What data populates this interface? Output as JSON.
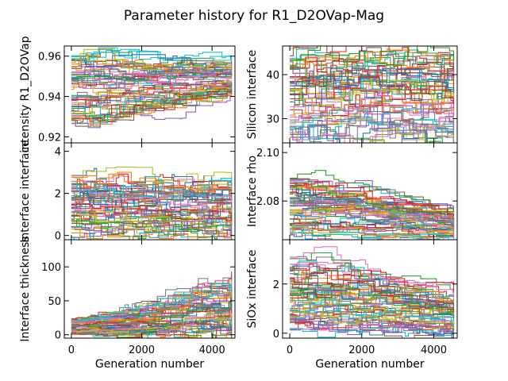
{
  "figure": {
    "title": "Parameter history for R1_D2OVap-Mag"
  },
  "chart_data": [
    {
      "type": "line",
      "ylabel": "intensity R1_D2OVap",
      "xlabel": "",
      "xlim": [
        -200,
        4650
      ],
      "ylim": [
        0.917,
        0.965
      ],
      "xticks": [
        0,
        2000,
        4000
      ],
      "yticks": [
        0.92,
        0.94,
        0.96
      ],
      "ytick_labels": [
        "0.92",
        "0.94",
        "0.96"
      ],
      "show_xtick_labels": false,
      "series_summary": {
        "center_start": 0.943,
        "center_end": 0.95,
        "spread_start": 0.018,
        "spread_end": 0.007
      },
      "grid": false
    },
    {
      "type": "line",
      "ylabel": "Silicon interface",
      "xlabel": "",
      "xlim": [
        -200,
        4650
      ],
      "ylim": [
        24.5,
        46.5
      ],
      "xticks": [
        0,
        2000,
        4000
      ],
      "yticks": [
        30,
        40
      ],
      "ytick_labels": [
        "30",
        "40"
      ],
      "show_xtick_labels": false,
      "series_summary": {
        "center_start": 35,
        "center_end": 35,
        "spread_start": 11,
        "spread_end": 10
      },
      "grid": false
    },
    {
      "type": "line",
      "ylabel": "Interface interface",
      "xlabel": "",
      "xlim": [
        -200,
        4650
      ],
      "ylim": [
        -0.2,
        4.4
      ],
      "xticks": [
        0,
        2000,
        4000
      ],
      "yticks": [
        0,
        2,
        4
      ],
      "ytick_labels": [
        "0",
        "2",
        "4"
      ],
      "show_xtick_labels": false,
      "series_summary": {
        "center_start": 1.3,
        "center_end": 1.1,
        "spread_start": 1.6,
        "spread_end": 1.5
      },
      "grid": false
    },
    {
      "type": "line",
      "ylabel": "Interface rho",
      "xlabel": "",
      "xlim": [
        -200,
        4650
      ],
      "ylim": [
        2.064,
        2.104
      ],
      "xticks": [
        0,
        2000,
        4000
      ],
      "yticks": [
        2.08,
        2.1
      ],
      "ytick_labels": [
        "2.08",
        "2.10"
      ],
      "show_xtick_labels": false,
      "series_summary": {
        "center_start": 2.078,
        "center_end": 2.068,
        "spread_start": 0.012,
        "spread_end": 0.004
      },
      "grid": false
    },
    {
      "type": "line",
      "ylabel": "Interface thickness",
      "xlabel": "Generation number",
      "xlim": [
        -200,
        4650
      ],
      "ylim": [
        -5,
        140
      ],
      "xticks": [
        0,
        2000,
        4000
      ],
      "xtick_labels": [
        "0",
        "2000",
        "4000"
      ],
      "yticks": [
        0,
        50,
        100
      ],
      "ytick_labels": [
        "0",
        "50",
        "100"
      ],
      "show_xtick_labels": true,
      "series_summary": {
        "center_start": 12,
        "center_end": 45,
        "spread_start": 12,
        "spread_end": 50
      },
      "grid": false
    },
    {
      "type": "line",
      "ylabel": "SiOx interface",
      "xlabel": "Generation number",
      "xlim": [
        -200,
        4650
      ],
      "ylim": [
        -0.2,
        3.8
      ],
      "xticks": [
        0,
        2000,
        4000
      ],
      "xtick_labels": [
        "0",
        "2000",
        "4000"
      ],
      "yticks": [
        0,
        2
      ],
      "ytick_labels": [
        "0",
        "2"
      ],
      "show_xtick_labels": true,
      "series_summary": {
        "center_start": 1.6,
        "center_end": 0.6,
        "spread_start": 1.5,
        "spread_end": 0.7
      },
      "grid": false
    }
  ],
  "series_colors": [
    "#1f77b4",
    "#ff7f0e",
    "#2ca02c",
    "#d62728",
    "#9467bd",
    "#8c564b",
    "#e377c2",
    "#7f7f7f",
    "#bcbd22",
    "#17becf"
  ]
}
